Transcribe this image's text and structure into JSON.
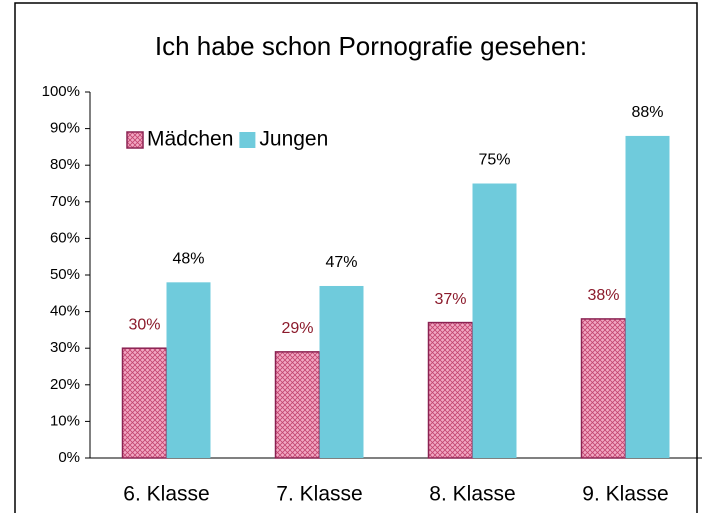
{
  "chart_data": {
    "type": "bar",
    "title": "Ich habe schon Pornografie gesehen:",
    "categories": [
      "6. Klasse",
      "7. Klasse",
      "8. Klasse",
      "9. Klasse"
    ],
    "series": [
      {
        "name": "Mädchen",
        "color": "#f2a7c3",
        "pattern": "crosshatch",
        "label_color": "#8b1a2b",
        "values": [
          30,
          29,
          37,
          38
        ],
        "value_labels": [
          "30%",
          "29%",
          "37%",
          "38%"
        ]
      },
      {
        "name": "Jungen",
        "color": "#6fcbdc",
        "label_color": "#000000",
        "values": [
          48,
          47,
          75,
          88
        ],
        "value_labels": [
          "48%",
          "47%",
          "75%",
          "88%"
        ]
      }
    ],
    "ylim": [
      0,
      100
    ],
    "yticks": [
      {
        "value": 0,
        "label": "0%"
      },
      {
        "value": 10,
        "label": "10%"
      },
      {
        "value": 20,
        "label": "20%"
      },
      {
        "value": 30,
        "label": "30%"
      },
      {
        "value": 40,
        "label": "40%"
      },
      {
        "value": 50,
        "label": "50%"
      },
      {
        "value": 60,
        "label": "60%"
      },
      {
        "value": 70,
        "label": "70%"
      },
      {
        "value": 80,
        "label": "80%"
      },
      {
        "value": 90,
        "label": "90%"
      },
      {
        "value": 100,
        "label": "100%"
      }
    ],
    "grid": false,
    "legend": "upper left"
  }
}
